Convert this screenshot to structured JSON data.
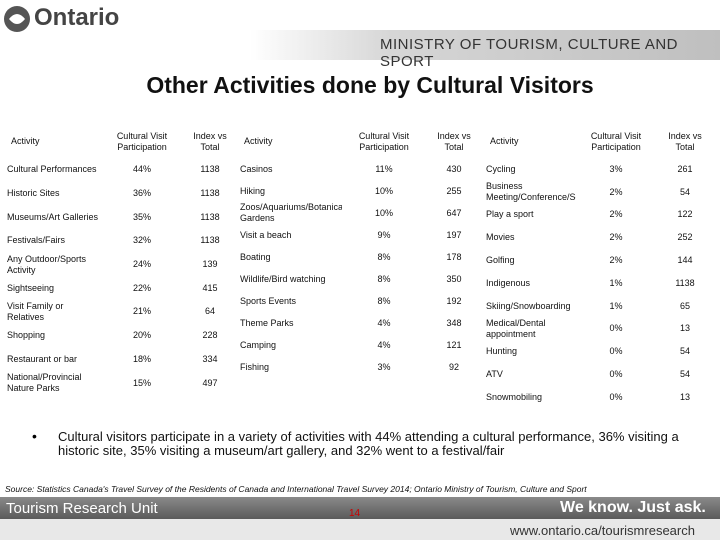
{
  "header": {
    "logo": "Ontario",
    "ministry": "MINISTRY OF TOURISM, CULTURE AND SPORT"
  },
  "title": "Other Activities done by Cultural Visitors",
  "tables": [
    {
      "columns": [
        "Activity",
        "Cultural Visit Participation",
        "Index vs Total"
      ],
      "rows": [
        [
          "Cultural Performances",
          "44%",
          "1138"
        ],
        [
          "Historic Sites",
          "36%",
          "1138"
        ],
        [
          "Museums/Art Galleries",
          "35%",
          "1138"
        ],
        [
          "Festivals/Fairs",
          "32%",
          "1138"
        ],
        [
          "Any Outdoor/Sports Activity",
          "24%",
          "139"
        ],
        [
          "Sightseeing",
          "22%",
          "415"
        ],
        [
          "Visit Family or Relatives",
          "21%",
          "64"
        ],
        [
          "Shopping",
          "20%",
          "228"
        ],
        [
          "Restaurant or bar",
          "18%",
          "334"
        ],
        [
          "National/Provincial Nature Parks",
          "15%",
          "497"
        ]
      ]
    },
    {
      "columns": [
        "Activity",
        "Cultural Visit Participation",
        "Index vs Total"
      ],
      "rows": [
        [
          "Casinos",
          "11%",
          "430"
        ],
        [
          "Hiking",
          "10%",
          "255"
        ],
        [
          "Zoos/Aquariums/Botanical Gardens",
          "10%",
          "647"
        ],
        [
          "Visit a beach",
          "9%",
          "197"
        ],
        [
          "Boating",
          "8%",
          "178"
        ],
        [
          "Wildlife/Bird watching",
          "8%",
          "350"
        ],
        [
          "Sports Events",
          "8%",
          "192"
        ],
        [
          "Theme Parks",
          "4%",
          "348"
        ],
        [
          "Camping",
          "4%",
          "121"
        ],
        [
          "Fishing",
          "3%",
          "92"
        ]
      ]
    },
    {
      "columns": [
        "Activity",
        "Cultural Visit Participation",
        "Index vs Total"
      ],
      "rows": [
        [
          "Cycling",
          "3%",
          "261"
        ],
        [
          "Business Meeting/Conference/Seminar",
          "2%",
          "54"
        ],
        [
          "Play a sport",
          "2%",
          "122"
        ],
        [
          "Movies",
          "2%",
          "252"
        ],
        [
          "Golfing",
          "2%",
          "144"
        ],
        [
          "Indigenous",
          "1%",
          "1138"
        ],
        [
          "Skiing/Snowboarding",
          "1%",
          "65"
        ],
        [
          "Medical/Dental appointment",
          "0%",
          "13"
        ],
        [
          "Hunting",
          "0%",
          "54"
        ],
        [
          "ATV",
          "0%",
          "54"
        ],
        [
          "Snowmobiling",
          "0%",
          "13"
        ]
      ]
    }
  ],
  "bullet": "Cultural visitors participate in a variety of activities with 44% attending a cultural performance, 36% visiting a historic site, 35% visiting a museum/art gallery, and 32% went to a festival/fair",
  "source": "Source: Statistics Canada's Travel Survey of the Residents of Canada and International Travel Survey 2014; Ontario Ministry of Tourism, Culture and Sport",
  "footer": {
    "unit": "Tourism Research Unit",
    "slogan": "We know. Just ask.",
    "page": "14",
    "url": "www.ontario.ca/tourismresearch"
  }
}
